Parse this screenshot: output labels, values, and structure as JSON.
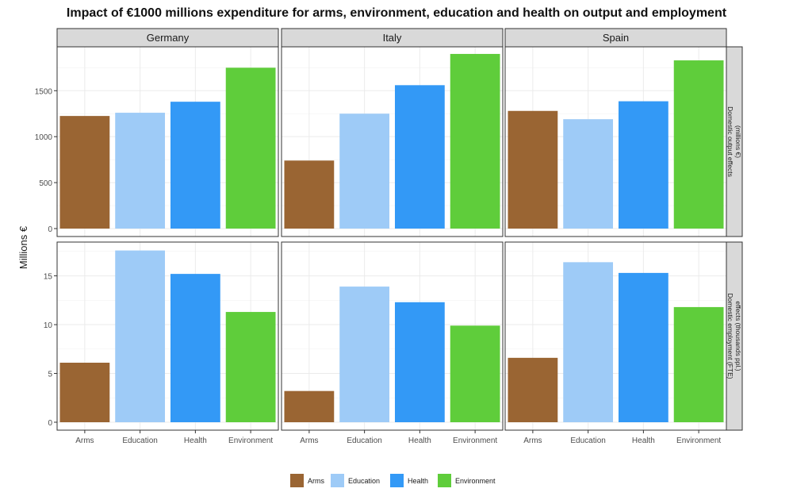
{
  "chart_data": {
    "type": "bar",
    "title": "Impact of €1000 millions expenditure for arms, environment, education and health on output and employment",
    "ylabel": "Millions €",
    "xlabel": "",
    "categories": [
      "Arms",
      "Education",
      "Health",
      "Environment"
    ],
    "colors": [
      "#9a6533",
      "#9ecbf7",
      "#3399f6",
      "#5fcd3b"
    ],
    "columns": [
      "Germany",
      "Italy",
      "Spain"
    ],
    "rows": [
      {
        "label": "Domestic output effects (millions €)",
        "label_lines": [
          "Domestic output effects",
          "(millions €)"
        ],
        "ylim": [
          0,
          1960
        ],
        "yticks": [
          0,
          500,
          1000,
          1500
        ],
        "values": {
          "Germany": [
            1225,
            1260,
            1380,
            1750
          ],
          "Italy": [
            740,
            1250,
            1560,
            1900
          ],
          "Spain": [
            1280,
            1190,
            1385,
            1830
          ]
        }
      },
      {
        "label": "Domestic employment (FTE) effects (thousands ppl.)",
        "label_lines": [
          "Domestic employment (FTE)",
          "effects (thousands ppl.)"
        ],
        "ylim": [
          0,
          18.3
        ],
        "yticks": [
          0,
          5,
          10,
          15
        ],
        "values": {
          "Germany": [
            6.1,
            17.6,
            15.2,
            11.3
          ],
          "Italy": [
            3.2,
            13.9,
            12.3,
            9.9
          ],
          "Spain": [
            6.6,
            16.4,
            15.3,
            11.8
          ]
        }
      }
    ],
    "legend": {
      "position": "bottom",
      "entries": [
        "Arms",
        "Education",
        "Health",
        "Environment"
      ]
    },
    "grid": true
  }
}
